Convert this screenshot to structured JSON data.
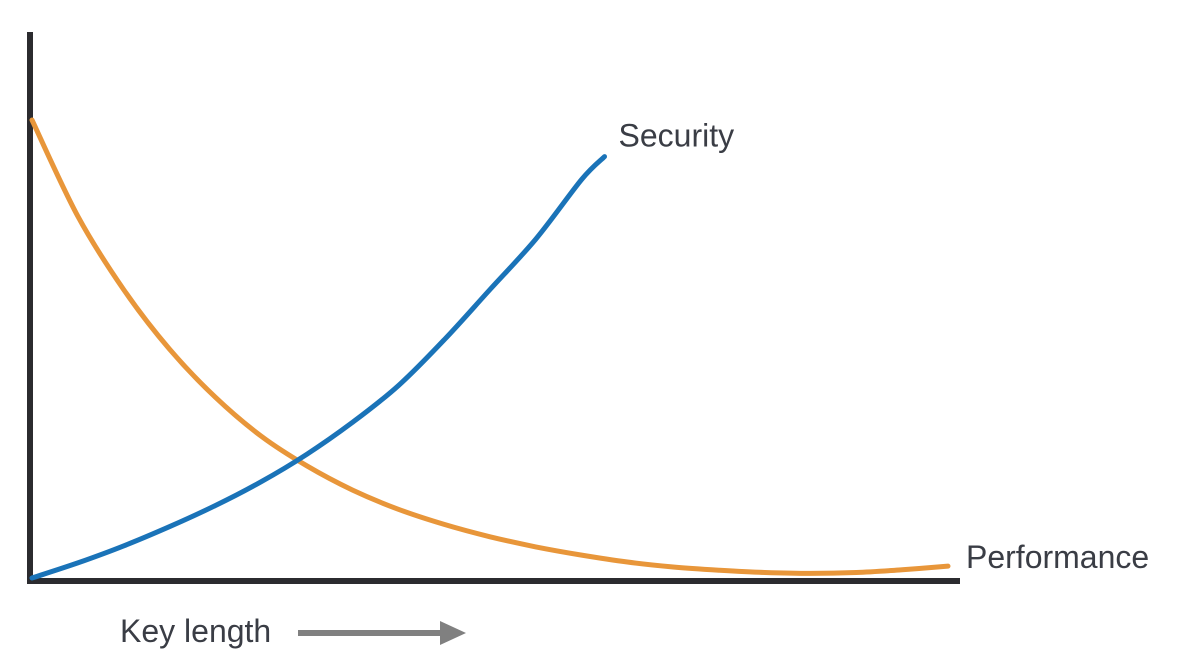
{
  "chart_data": {
    "type": "line",
    "title": "",
    "xlabel": "Key length",
    "ylabel": "",
    "xlim": [
      0,
      10
    ],
    "ylim": [
      0,
      10
    ],
    "grid": false,
    "legend": "none",
    "series": [
      {
        "name": "Security",
        "color": "#1a73b8",
        "x": [
          0,
          0.5,
          1,
          1.5,
          2,
          2.5,
          3,
          3.5,
          4,
          4.5,
          5,
          5.5,
          6,
          6.25
        ],
        "y": [
          0,
          0.33,
          0.7,
          1.12,
          1.58,
          2.1,
          2.7,
          3.4,
          4.2,
          5.2,
          6.3,
          7.4,
          8.7,
          9.2
        ]
      },
      {
        "name": "Performance",
        "color": "#e8963a",
        "x": [
          0,
          0.5,
          1,
          1.5,
          2,
          2.5,
          3,
          3.5,
          4,
          4.5,
          5,
          5.5,
          6,
          6.5,
          7,
          7.5,
          8,
          8.5,
          9,
          9.5,
          10
        ],
        "y": [
          10,
          7.9,
          6.3,
          5.0,
          3.95,
          3.1,
          2.45,
          1.92,
          1.5,
          1.17,
          0.9,
          0.68,
          0.5,
          0.35,
          0.24,
          0.17,
          0.12,
          0.1,
          0.12,
          0.18,
          0.26
        ]
      }
    ]
  }
}
